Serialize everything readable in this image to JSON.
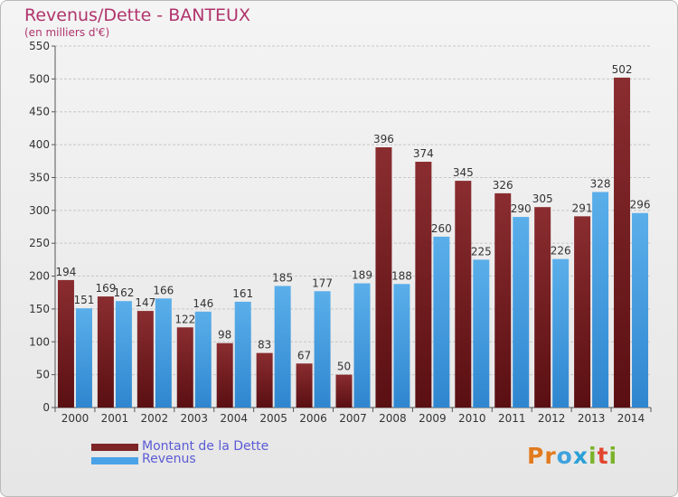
{
  "title": "Revenus/Dette - BANTEUX",
  "subtitle": "(en milliers d'€)",
  "logo": {
    "letters": [
      "P",
      "r",
      "o",
      "x",
      "i",
      "t",
      "i"
    ],
    "colors": [
      "#e27b1e",
      "#e27b1e",
      "#3ea2dc",
      "#2aa0d6",
      "#7bb32a",
      "#e2452f",
      "#7bb32a"
    ]
  },
  "chart_data": {
    "type": "bar",
    "categories": [
      "2000",
      "2001",
      "2002",
      "2003",
      "2004",
      "2005",
      "2006",
      "2007",
      "2008",
      "2009",
      "2010",
      "2011",
      "2012",
      "2013",
      "2014"
    ],
    "series": [
      {
        "name": "Montant de la Dette",
        "color": "#7d2427",
        "values": [
          194,
          169,
          147,
          122,
          98,
          83,
          67,
          50,
          396,
          374,
          345,
          326,
          305,
          291,
          502
        ],
        "labels": [
          "194",
          "169",
          "147",
          "122",
          "98",
          "83",
          "67",
          "50",
          "396",
          "374",
          "345",
          "326",
          "305",
          "291",
          "502"
        ]
      },
      {
        "name": "Revenus",
        "color": "#4aa3e6",
        "values": [
          151,
          162,
          166,
          146,
          161,
          185,
          177,
          189,
          188,
          260,
          225,
          290,
          226,
          328,
          296
        ],
        "labels": [
          "151",
          "162",
          "166",
          "146",
          "161",
          "185",
          "177",
          "189",
          "188",
          "260",
          "225",
          "290",
          "226",
          "328",
          "296"
        ]
      }
    ],
    "yticks": [
      0,
      50,
      100,
      150,
      200,
      250,
      300,
      350,
      400,
      450,
      500,
      550
    ],
    "ylim": [
      0,
      550
    ],
    "grid": true,
    "legend": "bottom-left"
  }
}
